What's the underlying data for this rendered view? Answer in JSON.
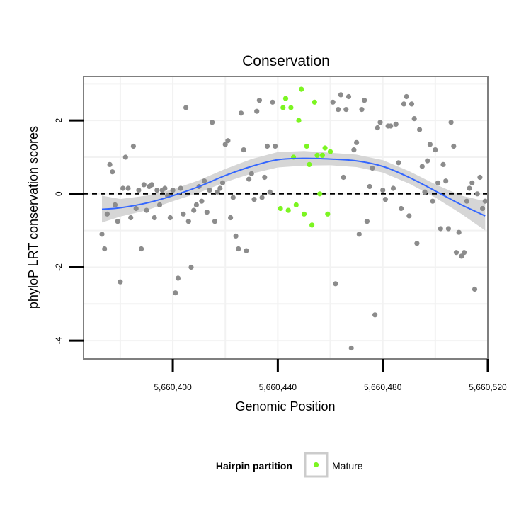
{
  "chart_data": {
    "type": "scatter",
    "title": "Conservation",
    "xlabel": "Genomic Position",
    "ylabel": "phyloP LRT conservation scores",
    "xlim": [
      5660366,
      5660520
    ],
    "ylim": [
      -4.5,
      3.2
    ],
    "x_ticks": [
      5660400,
      5660440,
      5660480,
      5660520
    ],
    "x_tick_labels": [
      "5,660,400",
      "5,660,440",
      "5,660,480",
      "5,660,520"
    ],
    "y_ticks": [
      2,
      0,
      -2,
      -4
    ],
    "y_tick_labels": [
      "2",
      "0",
      "-2",
      "-4"
    ],
    "grid": true,
    "reference_line": {
      "y": 0,
      "style": "dashed"
    },
    "colors": {
      "other": "#8c8c8c",
      "mature": "#7cf521",
      "smooth": "#3366ff",
      "band": "#d6d6d6",
      "panel_border": "#7f7f7f",
      "grid": "#f2f2f2"
    },
    "legend": {
      "title": "Hairpin partition",
      "entries": [
        {
          "label": "Mature",
          "color": "#7cf521"
        }
      ],
      "position": "bottom"
    },
    "series": [
      {
        "name": "",
        "color": "#8c8c8c",
        "points": [
          [
            5660373,
            -1.1
          ],
          [
            5660374,
            -1.5
          ],
          [
            5660375,
            -0.55
          ],
          [
            5660376,
            0.8
          ],
          [
            5660377,
            0.6
          ],
          [
            5660378,
            -0.3
          ],
          [
            5660379,
            -0.75
          ],
          [
            5660380,
            -2.4
          ],
          [
            5660381,
            0.15
          ],
          [
            5660382,
            1.0
          ],
          [
            5660383,
            0.15
          ],
          [
            5660384,
            -0.65
          ],
          [
            5660385,
            1.3
          ],
          [
            5660386,
            -0.4
          ],
          [
            5660387,
            0.1
          ],
          [
            5660388,
            -1.5
          ],
          [
            5660389,
            0.25
          ],
          [
            5660390,
            -0.45
          ],
          [
            5660391,
            0.2
          ],
          [
            5660392,
            0.25
          ],
          [
            5660393,
            -0.65
          ],
          [
            5660394,
            0.1
          ],
          [
            5660395,
            -0.3
          ],
          [
            5660396,
            0.1
          ],
          [
            5660397,
            0.15
          ],
          [
            5660398,
            -0.05
          ],
          [
            5660399,
            -0.65
          ],
          [
            5660400,
            0.1
          ],
          [
            5660401,
            -2.7
          ],
          [
            5660402,
            -2.3
          ],
          [
            5660403,
            0.15
          ],
          [
            5660404,
            -0.55
          ],
          [
            5660405,
            2.35
          ],
          [
            5660406,
            -0.75
          ],
          [
            5660407,
            -2.0
          ],
          [
            5660408,
            -0.45
          ],
          [
            5660409,
            -0.3
          ],
          [
            5660410,
            0.2
          ],
          [
            5660411,
            -0.2
          ],
          [
            5660412,
            0.35
          ],
          [
            5660413,
            -0.5
          ],
          [
            5660414,
            0.1
          ],
          [
            5660415,
            1.95
          ],
          [
            5660416,
            -0.75
          ],
          [
            5660417,
            0.05
          ],
          [
            5660418,
            0.15
          ],
          [
            5660419,
            0.3
          ],
          [
            5660420,
            1.35
          ],
          [
            5660421,
            1.45
          ],
          [
            5660422,
            -0.65
          ],
          [
            5660423,
            -0.1
          ],
          [
            5660424,
            -1.15
          ],
          [
            5660425,
            -1.5
          ],
          [
            5660426,
            2.2
          ],
          [
            5660427,
            1.2
          ],
          [
            5660428,
            -1.55
          ],
          [
            5660429,
            0.4
          ],
          [
            5660430,
            0.55
          ],
          [
            5660431,
            -0.15
          ],
          [
            5660432,
            2.25
          ],
          [
            5660433,
            2.55
          ],
          [
            5660434,
            -0.1
          ],
          [
            5660435,
            0.45
          ],
          [
            5660436,
            1.3
          ],
          [
            5660437,
            0.05
          ],
          [
            5660438,
            2.5
          ],
          [
            5660439,
            1.3
          ],
          [
            5660461,
            2.5
          ],
          [
            5660462,
            -2.45
          ],
          [
            5660463,
            2.3
          ],
          [
            5660464,
            2.7
          ],
          [
            5660465,
            0.45
          ],
          [
            5660466,
            2.3
          ],
          [
            5660467,
            2.65
          ],
          [
            5660468,
            -4.2
          ],
          [
            5660469,
            1.2
          ],
          [
            5660470,
            1.4
          ],
          [
            5660471,
            -1.1
          ],
          [
            5660472,
            2.3
          ],
          [
            5660473,
            2.55
          ],
          [
            5660474,
            -0.75
          ],
          [
            5660475,
            0.2
          ],
          [
            5660476,
            0.7
          ],
          [
            5660477,
            -3.3
          ],
          [
            5660478,
            1.8
          ],
          [
            5660479,
            1.95
          ],
          [
            5660480,
            0.1
          ],
          [
            5660481,
            -0.15
          ],
          [
            5660482,
            1.85
          ],
          [
            5660483,
            1.85
          ],
          [
            5660484,
            0.15
          ],
          [
            5660485,
            1.9
          ],
          [
            5660486,
            0.85
          ],
          [
            5660487,
            -0.4
          ],
          [
            5660488,
            2.45
          ],
          [
            5660489,
            2.65
          ],
          [
            5660490,
            -0.6
          ],
          [
            5660491,
            2.45
          ],
          [
            5660492,
            2.05
          ],
          [
            5660493,
            -1.35
          ],
          [
            5660494,
            1.75
          ],
          [
            5660495,
            0.75
          ],
          [
            5660496,
            0.05
          ],
          [
            5660497,
            0.9
          ],
          [
            5660498,
            1.35
          ],
          [
            5660499,
            -0.2
          ],
          [
            5660500,
            1.2
          ],
          [
            5660501,
            0.3
          ],
          [
            5660502,
            -0.95
          ],
          [
            5660503,
            0.8
          ],
          [
            5660504,
            0.35
          ],
          [
            5660505,
            -0.95
          ],
          [
            5660506,
            1.95
          ],
          [
            5660507,
            1.3
          ],
          [
            5660508,
            -1.6
          ],
          [
            5660509,
            -1.05
          ],
          [
            5660510,
            -1.7
          ],
          [
            5660511,
            -1.6
          ],
          [
            5660512,
            -0.2
          ],
          [
            5660513,
            0.15
          ],
          [
            5660514,
            0.3
          ],
          [
            5660515,
            -2.6
          ],
          [
            5660516,
            0.0
          ],
          [
            5660517,
            0.45
          ],
          [
            5660518,
            -0.4
          ],
          [
            5660519,
            -0.2
          ]
        ]
      },
      {
        "name": "Mature",
        "color": "#7cf521",
        "points": [
          [
            5660441,
            -0.4
          ],
          [
            5660442,
            2.35
          ],
          [
            5660443,
            2.6
          ],
          [
            5660444,
            -0.45
          ],
          [
            5660445,
            2.35
          ],
          [
            5660446,
            1.0
          ],
          [
            5660447,
            -0.3
          ],
          [
            5660448,
            2.0
          ],
          [
            5660449,
            2.85
          ],
          [
            5660450,
            -0.55
          ],
          [
            5660451,
            1.3
          ],
          [
            5660452,
            0.8
          ],
          [
            5660453,
            -0.85
          ],
          [
            5660454,
            2.5
          ],
          [
            5660455,
            1.05
          ],
          [
            5660456,
            0.0
          ],
          [
            5660457,
            1.05
          ],
          [
            5660458,
            1.25
          ],
          [
            5660459,
            -0.55
          ],
          [
            5660460,
            1.15
          ]
        ]
      }
    ],
    "smooth": {
      "x": [
        5660373,
        5660380,
        5660390,
        5660400,
        5660410,
        5660420,
        5660430,
        5660440,
        5660450,
        5660460,
        5660470,
        5660480,
        5660490,
        5660500,
        5660510,
        5660519
      ],
      "y": [
        -0.42,
        -0.38,
        -0.25,
        -0.05,
        0.2,
        0.5,
        0.75,
        0.93,
        0.97,
        0.95,
        0.9,
        0.75,
        0.45,
        0.08,
        -0.3,
        -0.6
      ],
      "lower": [
        -0.78,
        -0.62,
        -0.45,
        -0.2,
        0.03,
        0.32,
        0.55,
        0.72,
        0.77,
        0.78,
        0.73,
        0.58,
        0.28,
        -0.1,
        -0.55,
        -1.0
      ],
      "upper": [
        -0.05,
        -0.14,
        -0.05,
        0.12,
        0.37,
        0.68,
        0.95,
        1.14,
        1.17,
        1.12,
        1.07,
        0.92,
        0.62,
        0.26,
        -0.05,
        -0.2
      ]
    }
  }
}
